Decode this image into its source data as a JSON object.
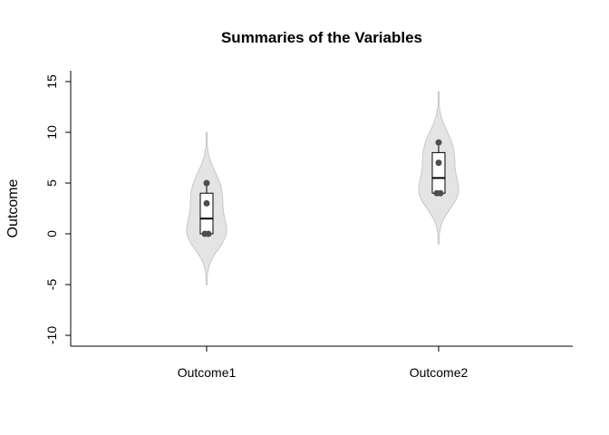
{
  "chart_data": {
    "type": "violin",
    "title": "Summaries of the Variables",
    "xlabel": "",
    "ylabel": "Outcome",
    "ylim": [
      -11,
      16
    ],
    "yticks": [
      -10,
      -5,
      0,
      5,
      10,
      15
    ],
    "categories": [
      "Outcome1",
      "Outcome2"
    ],
    "groups": [
      {
        "name": "Outcome1",
        "points": [
          0,
          0,
          3,
          5
        ],
        "box": {
          "min": 0,
          "q1": 0,
          "median": 1.5,
          "q3": 4,
          "max": 5
        },
        "violin_range": [
          -5,
          10
        ]
      },
      {
        "name": "Outcome2",
        "points": [
          4,
          4,
          7,
          9
        ],
        "box": {
          "min": 4,
          "q1": 4,
          "median": 5.5,
          "q3": 8,
          "max": 9
        },
        "violin_range": [
          -1,
          14
        ]
      }
    ],
    "colors": {
      "violin_fill": "#e4e4e4",
      "violin_stroke": "#c8c8c8",
      "points": "#4d4d4d",
      "box_fill": "#ffffff"
    },
    "grid": false,
    "legend": "none"
  }
}
